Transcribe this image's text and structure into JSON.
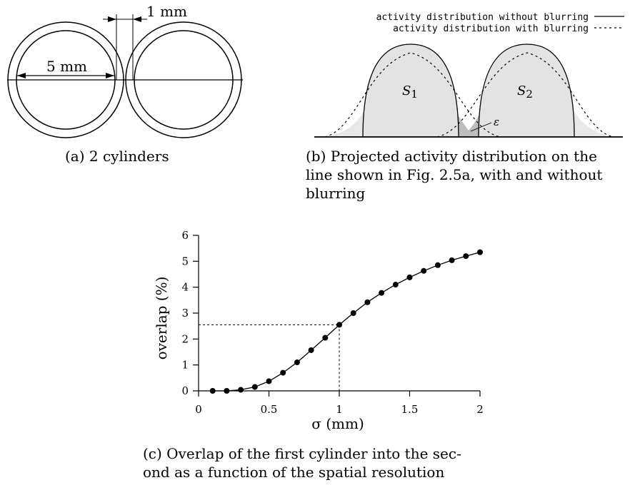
{
  "panel_a": {
    "dim_gap": "1 mm",
    "dim_diameter": "5 mm",
    "caption": "(a) 2 cylinders"
  },
  "panel_b": {
    "legend_without": "activity distribution without blurring",
    "legend_with": "activity distribution with blurring",
    "label_s1": "S",
    "label_s1_sub": "1",
    "label_s2": "S",
    "label_s2_sub": "2",
    "label_eps": "ε",
    "caption_lines": [
      "(b) Projected activity distribution on the",
      "line shown in Fig. 2.5a, with and without",
      "blurring"
    ]
  },
  "panel_c": {
    "caption_lines": [
      "(c) Overlap of the first cylinder into the sec-",
      "ond as a function of the spatial resolution"
    ]
  },
  "chart_data": {
    "type": "line",
    "xlabel": "σ (mm)",
    "ylabel": "overlap (%)",
    "xlim": [
      0,
      2
    ],
    "ylim": [
      0,
      6
    ],
    "xticks": [
      0,
      0.5,
      1,
      1.5,
      2
    ],
    "xtick_labels": [
      "0",
      "0.5",
      "1",
      "1.5",
      "2"
    ],
    "yticks": [
      0,
      1,
      2,
      3,
      4,
      5,
      6
    ],
    "ytick_labels": [
      "0",
      "1",
      "2",
      "3",
      "4",
      "5",
      "6"
    ],
    "grid": false,
    "marker": "filled-circle",
    "reference_point": {
      "x": 1.0,
      "y": 2.55
    },
    "series": [
      {
        "x": [
          0.1,
          0.2,
          0.3,
          0.4,
          0.5,
          0.6,
          0.7,
          0.8,
          0.9,
          1.0,
          1.1,
          1.2,
          1.3,
          1.4,
          1.5,
          1.6,
          1.7,
          1.8,
          1.9,
          2.0
        ],
        "y": [
          0.0,
          0.0,
          0.04,
          0.15,
          0.37,
          0.7,
          1.1,
          1.57,
          2.05,
          2.55,
          3.0,
          3.42,
          3.78,
          4.1,
          4.38,
          4.63,
          4.85,
          5.04,
          5.2,
          5.35
        ]
      }
    ]
  }
}
